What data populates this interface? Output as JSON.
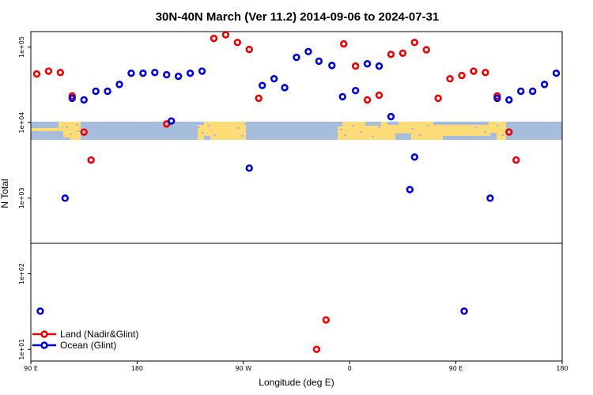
{
  "chart_data": {
    "type": "scatter",
    "title": "30N-40N March (Ver 11.2)   2014-09-06 to 2024-07-31",
    "xlabel": "Longitude (deg E)",
    "ylabel": "N Total",
    "x_ticks": [
      {
        "value": 90,
        "label": "90 E"
      },
      {
        "value": 180,
        "label": "180"
      },
      {
        "value": 270,
        "label": "90 W"
      },
      {
        "value": 360,
        "label": "0"
      },
      {
        "value": 450,
        "label": "90 E"
      },
      {
        "value": 540,
        "label": "180"
      }
    ],
    "xlim": [
      90,
      540
    ],
    "y_log": true,
    "ylim": [
      0.07,
      1600
    ],
    "y_ticks": [
      {
        "value": 1000,
        "label": "1e+05"
      },
      {
        "value": 100,
        "label": "1e+04"
      },
      {
        "value": 10,
        "label": "1e+03"
      },
      {
        "value": 1,
        "label": "1e+02"
      },
      {
        "value": 0.1,
        "label": "1e+01"
      }
    ],
    "panel_split": 0.7,
    "map_band": {
      "colors": {
        "land": "#fddc78",
        "ocean": "#a6bddb"
      }
    },
    "legend": {
      "position": "bottom-left",
      "entries": [
        {
          "label": "Land (Nadir&Glint)",
          "color": "#ee0000"
        },
        {
          "label": "Ocean (Glint)",
          "color": "#0000dd"
        }
      ]
    },
    "series": [
      {
        "name": "Land (Nadir&Glint)",
        "color": "#ee0000",
        "points": [
          [
            95,
            440
          ],
          [
            105,
            480
          ],
          [
            115,
            460
          ],
          [
            125,
            225
          ],
          [
            135,
            75
          ],
          [
            141,
            32
          ],
          [
            205,
            96
          ],
          [
            245,
            1300
          ],
          [
            255,
            1450
          ],
          [
            265,
            1150
          ],
          [
            275,
            930
          ],
          [
            283,
            210
          ],
          [
            332,
            0.1
          ],
          [
            340,
            0.245
          ],
          [
            355,
            1100
          ],
          [
            365,
            560
          ],
          [
            375,
            200
          ],
          [
            385,
            230
          ],
          [
            395,
            800
          ],
          [
            405,
            830
          ],
          [
            415,
            1150
          ],
          [
            425,
            920
          ],
          [
            435,
            210
          ],
          [
            445,
            380
          ],
          [
            455,
            420
          ],
          [
            465,
            480
          ],
          [
            475,
            460
          ],
          [
            485,
            225
          ],
          [
            495,
            75
          ],
          [
            501,
            32
          ]
        ]
      },
      {
        "name": "Ocean (Glint)",
        "color": "#0000dd",
        "points": [
          [
            98,
            0.32
          ],
          [
            119,
            10
          ],
          [
            125,
            210
          ],
          [
            135,
            200
          ],
          [
            145,
            260
          ],
          [
            155,
            260
          ],
          [
            165,
            320
          ],
          [
            175,
            450
          ],
          [
            185,
            450
          ],
          [
            195,
            460
          ],
          [
            205,
            430
          ],
          [
            215,
            410
          ],
          [
            225,
            450
          ],
          [
            235,
            480
          ],
          [
            209,
            105
          ],
          [
            275,
            25
          ],
          [
            286,
            310
          ],
          [
            296,
            380
          ],
          [
            305,
            290
          ],
          [
            315,
            730
          ],
          [
            325,
            870
          ],
          [
            334,
            650
          ],
          [
            345,
            570
          ],
          [
            354,
            220
          ],
          [
            365,
            265
          ],
          [
            375,
            600
          ],
          [
            385,
            560
          ],
          [
            395,
            120
          ],
          [
            411,
            13
          ],
          [
            415,
            35
          ],
          [
            457,
            0.32
          ],
          [
            479,
            10
          ],
          [
            485,
            210
          ],
          [
            495,
            200
          ],
          [
            505,
            260
          ],
          [
            515,
            260
          ],
          [
            525,
            320
          ],
          [
            535,
            450
          ]
        ]
      }
    ]
  }
}
